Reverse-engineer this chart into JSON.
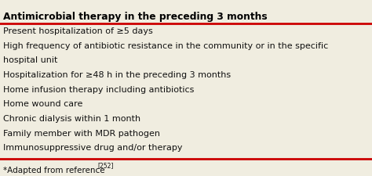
{
  "title": "Antimicrobial therapy in the preceding 3 months",
  "rows": [
    "Present hospitalization of ≥5 days",
    "High frequency of antibiotic resistance in the community or in the specific",
    "hospital unit",
    "Hospitalization for ≥48 h in the preceding 3 months",
    "Home infusion therapy including antibiotics",
    "Home wound care",
    "Chronic dialysis within 1 month",
    "Family member with MDR pathogen",
    "Immunosuppressive drug and/or therapy"
  ],
  "footnote_main": "*Adapted from reference",
  "footnote_sup": "[252]",
  "bg_color": "#f0ede0",
  "border_color": "#cc0000",
  "title_color": "#000000",
  "text_color": "#111111",
  "title_fontsize": 8.8,
  "body_fontsize": 8.0,
  "footnote_fontsize": 7.5,
  "footnote_sup_fontsize": 5.5
}
